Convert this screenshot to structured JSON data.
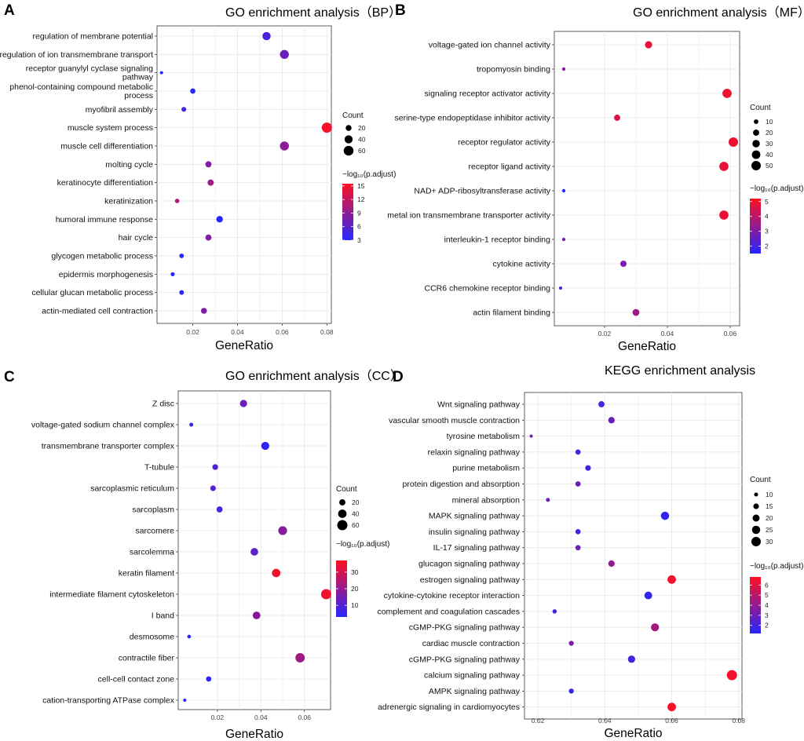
{
  "chart_data": [
    {
      "panel": "A",
      "type": "scatter",
      "title": "GO enrichment analysis（BP）",
      "xlabel": "GeneRatio",
      "ylabel": "",
      "xlim": [
        0.004,
        0.082
      ],
      "xticks": [
        0.02,
        0.04,
        0.06,
        0.08
      ],
      "xtick_labels": [
        "0.02",
        "0.04",
        "0.06",
        "0.08"
      ],
      "grid": true,
      "categories": [
        "regulation of membrane potential",
        "regulation of ion transmembrane transport",
        "receptor guanylyl cyclase signaling pathway",
        "phenol-containing compound metabolic process",
        "myofibril assembly",
        "muscle system process",
        "muscle cell differentiation",
        "molting cycle",
        "keratinocyte differentiation",
        "keratinization",
        "humoral immune response",
        "hair cycle",
        "glycogen metabolic process",
        "epidermis morphogenesis",
        "cellular glucan metabolic process",
        "actin-mediated cell contraction"
      ],
      "gene_ratio": [
        0.053,
        0.061,
        0.006,
        0.02,
        0.016,
        0.08,
        0.061,
        0.027,
        0.028,
        0.013,
        0.032,
        0.027,
        0.015,
        0.011,
        0.015,
        0.025
      ],
      "count": [
        42,
        49,
        5,
        16,
        13,
        65,
        50,
        22,
        23,
        11,
        26,
        22,
        12,
        9,
        12,
        20
      ],
      "neg_log10_padj": [
        5,
        7,
        3,
        3,
        5,
        15,
        9,
        8,
        10,
        11,
        3,
        8,
        3,
        3,
        3,
        8
      ],
      "size_legend": {
        "title": "Count",
        "values": [
          20,
          40,
          60
        ],
        "labels": [
          "20",
          "40",
          "60"
        ]
      },
      "color_legend": {
        "title": "−log₁₀(p.adjust)",
        "range": [
          3,
          15.5
        ],
        "ticks": [
          3,
          6,
          9,
          12,
          15
        ],
        "tick_labels": [
          "3",
          "6",
          "9",
          "12",
          "15"
        ]
      }
    },
    {
      "panel": "B",
      "type": "scatter",
      "title": "GO enrichment analysis（MF）",
      "xlabel": "GeneRatio",
      "ylabel": "",
      "xlim": [
        0.004,
        0.063
      ],
      "xticks": [
        0.02,
        0.04,
        0.06
      ],
      "xtick_labels": [
        "0.02",
        "0.04",
        "0.06"
      ],
      "grid": true,
      "categories": [
        "voltage-gated ion channel activity",
        "tropomyosin binding",
        "signaling receptor activator activity",
        "serine-type endopeptidase inhibitor activity",
        "receptor regulator activity",
        "receptor ligand activity",
        "NAD+ ADP-ribosyltransferase activity",
        "metal ion transmembrane transporter activity",
        "interleukin-1 receptor binding",
        "cytokine activity",
        "CCR6 chemokine receptor binding",
        "actin filament binding"
      ],
      "gene_ratio": [
        0.034,
        0.007,
        0.059,
        0.024,
        0.061,
        0.058,
        0.007,
        0.058,
        0.007,
        0.026,
        0.006,
        0.03
      ],
      "count": [
        28,
        5,
        48,
        20,
        50,
        47,
        5,
        47,
        5,
        21,
        4,
        25
      ],
      "neg_log10_padj": [
        4.8,
        3.0,
        4.9,
        4.6,
        4.9,
        4.8,
        1.5,
        4.8,
        3.0,
        3.0,
        1.8,
        3.5
      ],
      "size_legend": {
        "title": "Count",
        "values": [
          10,
          20,
          30,
          40,
          50
        ],
        "labels": [
          "10",
          "20",
          "30",
          "40",
          "50"
        ]
      },
      "color_legend": {
        "title": "−log₁₀(p.adjust)",
        "range": [
          1.5,
          5.2
        ],
        "ticks": [
          2,
          3,
          4,
          5
        ],
        "tick_labels": [
          "2",
          "3",
          "4",
          "5"
        ]
      }
    },
    {
      "panel": "C",
      "type": "scatter",
      "title": "GO enrichment analysis（CC）",
      "xlabel": "GeneRatio",
      "ylabel": "",
      "xlim": [
        0.002,
        0.072
      ],
      "xticks": [
        0.02,
        0.04,
        0.06
      ],
      "xtick_labels": [
        "0.02",
        "0.04",
        "0.06"
      ],
      "grid": true,
      "categories": [
        "Z disc",
        "voltage-gated sodium channel complex",
        "transmembrane transporter complex",
        "T-tubule",
        "sarcoplasmic reticulum",
        "sarcoplasm",
        "sarcomere",
        "sarcolemma",
        "keratin filament",
        "intermediate filament cytoskeleton",
        "I band",
        "desmosome",
        "contractile fiber",
        "cell-cell contact zone",
        "cation-transporting ATPase complex"
      ],
      "gene_ratio": [
        0.032,
        0.008,
        0.042,
        0.019,
        0.018,
        0.021,
        0.05,
        0.037,
        0.047,
        0.07,
        0.038,
        0.007,
        0.058,
        0.016,
        0.005
      ],
      "count": [
        28,
        7,
        36,
        17,
        16,
        19,
        43,
        32,
        40,
        60,
        33,
        6,
        50,
        14,
        4
      ],
      "neg_log10_padj": [
        14,
        5,
        4,
        10,
        10,
        8,
        18,
        12,
        35,
        35,
        18,
        4,
        22,
        4,
        4
      ],
      "size_legend": {
        "title": "Count",
        "values": [
          20,
          40,
          60
        ],
        "labels": [
          "20",
          "40",
          "60"
        ]
      },
      "color_legend": {
        "title": "−log₁₀(p.adjust)",
        "range": [
          3,
          37
        ],
        "ticks": [
          10,
          20,
          30
        ],
        "tick_labels": [
          "10",
          "20",
          "30"
        ]
      }
    },
    {
      "panel": "D",
      "type": "scatter",
      "title": "KEGG enrichment analysis",
      "xlabel": "GeneRatio",
      "ylabel": "",
      "xlim": [
        0.016,
        0.081
      ],
      "xticks": [
        0.02,
        0.04,
        0.06,
        0.08
      ],
      "xtick_labels": [
        "0.02",
        "0.04",
        "0.06",
        "0.08"
      ],
      "grid": true,
      "categories": [
        "Wnt signaling pathway",
        "vascular smooth muscle contraction",
        "tyrosine metabolism",
        "relaxin signaling pathway",
        "purine metabolism",
        "protein digestion and absorption",
        "mineral absorption",
        "MAPK signaling pathway",
        "insulin signaling pathway",
        "IL-17 signaling pathway",
        "glucagon signaling pathway",
        "estrogen signaling pathway",
        "cytokine-cytokine receptor interaction",
        "complement and coagulation cascades",
        "cGMP-PKG signaling pathway",
        "cardiac muscle contraction",
        "cGMP-PKG signaling pathway",
        "calcium signaling pathway",
        "AMPK signaling pathway",
        "adrenergic signaling in cardiomyocytes"
      ],
      "gene_ratio": [
        0.039,
        0.042,
        0.018,
        0.032,
        0.035,
        0.032,
        0.023,
        0.058,
        0.032,
        0.032,
        0.042,
        0.06,
        0.053,
        0.025,
        0.055,
        0.03,
        0.048,
        0.078,
        0.03,
        0.06
      ],
      "count": [
        17,
        18,
        8,
        14,
        15,
        14,
        10,
        25,
        14,
        14,
        18,
        26,
        23,
        11,
        24,
        13,
        21,
        34,
        13,
        26
      ],
      "neg_log10_padj": [
        2.0,
        3.0,
        3.0,
        2.0,
        2.0,
        3.0,
        3.0,
        1.5,
        2.0,
        3.0,
        4.0,
        6.5,
        1.5,
        2.0,
        4.5,
        3.5,
        2.0,
        6.5,
        1.5,
        6.5
      ],
      "size_legend": {
        "title": "Count",
        "values": [
          10,
          15,
          20,
          25,
          30
        ],
        "labels": [
          "10",
          "15",
          "20",
          "25",
          "30"
        ]
      },
      "color_legend": {
        "title": "−log₁₀(p.adjust)",
        "range": [
          1.2,
          6.8
        ],
        "ticks": [
          2,
          3,
          4,
          5,
          6
        ],
        "tick_labels": [
          "2",
          "3",
          "4",
          "5",
          "6"
        ]
      }
    }
  ]
}
